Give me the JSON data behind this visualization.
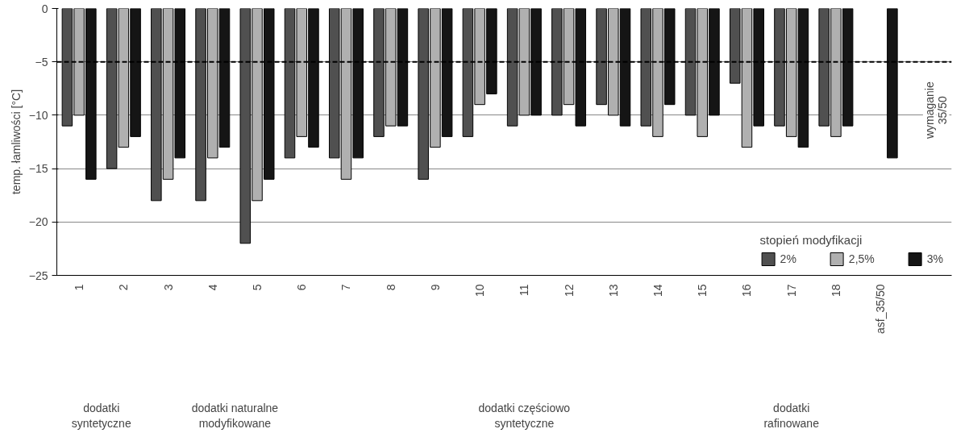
{
  "chart_data": {
    "type": "bar",
    "ylabel": "temp. łamliwości [°C]",
    "legend_title": "stopień modyfikacji",
    "categories": [
      "1",
      "2",
      "3",
      "4",
      "5",
      "6",
      "7",
      "8",
      "9",
      "10",
      "11",
      "12",
      "13",
      "14",
      "15",
      "16",
      "17",
      "18",
      "asf_35/50"
    ],
    "series": [
      {
        "name": "2%",
        "color": "#505050",
        "values": [
          -11,
          -15,
          -18,
          -18,
          -22,
          -14,
          -14,
          -12,
          -16,
          -12,
          -11,
          -10,
          -9,
          -11,
          -10,
          -7,
          -11,
          -11,
          null
        ]
      },
      {
        "name": "2,5%",
        "color": "#b0b0b0",
        "values": [
          -10,
          -13,
          -16,
          -14,
          -18,
          -12,
          -16,
          -11,
          -13,
          -9,
          -10,
          -9,
          -10,
          -12,
          -12,
          -13,
          -12,
          -12,
          null
        ]
      },
      {
        "name": "3%",
        "color": "#151515",
        "values": [
          -16,
          -12,
          -14,
          -13,
          -16,
          -13,
          -14,
          -11,
          -12,
          -8,
          -10,
          -11,
          -11,
          -9,
          -10,
          -11,
          -13,
          -11,
          -14
        ]
      }
    ],
    "ylim": [
      -25,
      0
    ],
    "yticks": [
      -25,
      -20,
      -15,
      -10,
      -5,
      0
    ],
    "grid": "y",
    "legend": "bottom right",
    "ref_lines": [
      {
        "axis": "y",
        "value": -5,
        "label": "wymaganie 35/50",
        "line_style": "dashed",
        "color": "#000000"
      }
    ],
    "annotations": [
      "dodatki syntetyczne",
      "dodatki naturalne modyfikowane",
      "dodatki częściowo syntetyczne",
      "dodatki rafinowane"
    ]
  }
}
